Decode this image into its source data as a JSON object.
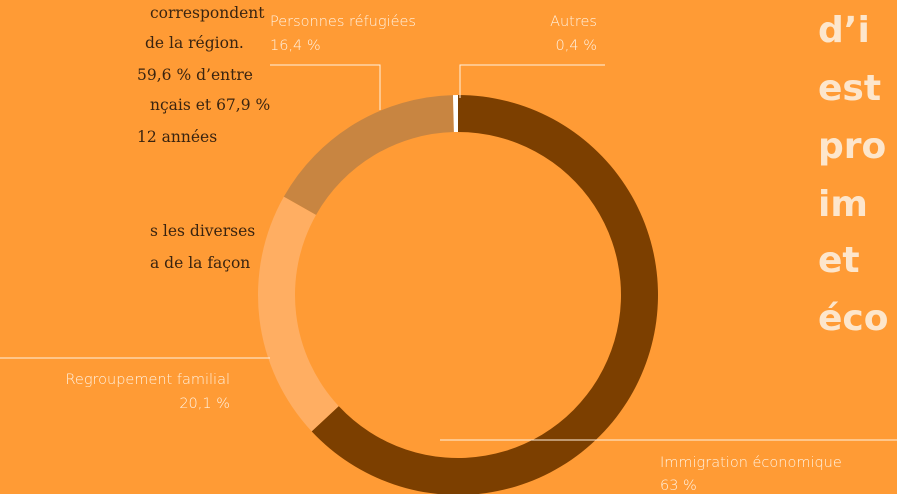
{
  "chart_data": {
    "type": "pie",
    "categories": [
      "Immigration économique",
      "Regroupement familial",
      "Personnes réfugiées",
      "Autres"
    ],
    "values": [
      63,
      20.1,
      16.4,
      0.4
    ],
    "value_labels": [
      "63 %",
      "20,1 %",
      "16,4 %",
      "0,4 %"
    ],
    "colors": [
      "#7c3f00",
      "#ffae62",
      "#c88541",
      "#ffffff"
    ]
  },
  "left_text": [
    "correspondent",
    "de la région.",
    "59,6 % d’entre",
    "nçais et 67,9 %",
    "12 années",
    "s les diverses",
    "a de la façon"
  ],
  "right_text": [
    "d’i",
    "est",
    "pro",
    "im",
    "et",
    "éco"
  ]
}
